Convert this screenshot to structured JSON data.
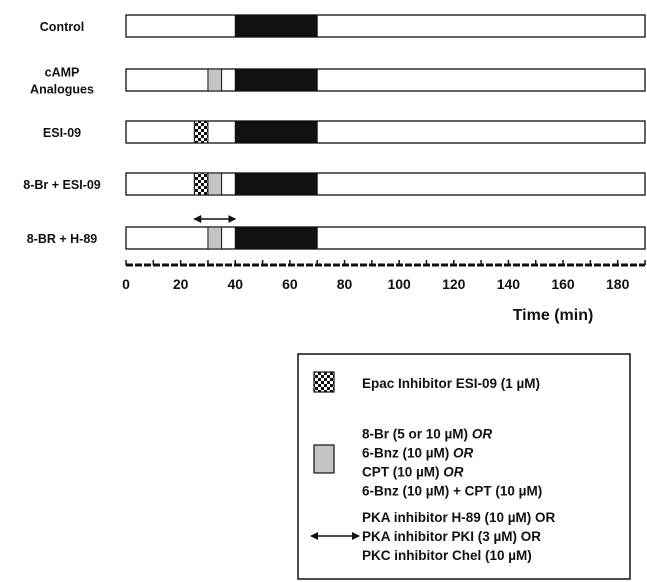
{
  "rows": [
    {
      "label_lines": [
        "Control"
      ],
      "segments": [
        {
          "kind": "dark",
          "start": 40,
          "end": 70
        }
      ]
    },
    {
      "label_lines": [
        "cAMP",
        "Analogues"
      ],
      "segments": [
        {
          "kind": "gray",
          "start": 30,
          "end": 35
        },
        {
          "kind": "dark",
          "start": 40,
          "end": 70
        }
      ]
    },
    {
      "label_lines": [
        "ESI-09"
      ],
      "segments": [
        {
          "kind": "checker",
          "start": 25,
          "end": 30
        },
        {
          "kind": "dark",
          "start": 40,
          "end": 70
        }
      ]
    },
    {
      "label_lines": [
        "8-Br + ESI-09"
      ],
      "segments": [
        {
          "kind": "checker",
          "start": 25,
          "end": 30
        },
        {
          "kind": "gray",
          "start": 30,
          "end": 35
        },
        {
          "kind": "dark",
          "start": 40,
          "end": 70
        }
      ]
    },
    {
      "label_lines": [
        "8-BR + H-89"
      ],
      "segments": [
        {
          "kind": "gray",
          "start": 30,
          "end": 35
        },
        {
          "kind": "dark",
          "start": 40,
          "end": 70
        }
      ],
      "arrow": {
        "start": 25,
        "end": 40
      }
    }
  ],
  "axis": {
    "min": 0,
    "max": 190,
    "ticks": [
      0,
      20,
      40,
      60,
      80,
      100,
      120,
      140,
      160,
      180
    ],
    "label": "Time (min)"
  },
  "legend": [
    {
      "kind": "checker",
      "lines": [
        [
          {
            "t": "Epac Inhibitor ESI-09 (1 µM)"
          }
        ]
      ]
    },
    {
      "kind": "gray",
      "lines": [
        [
          {
            "t": "8-Br (5 or 10 µM) "
          },
          {
            "t": "OR",
            "i": true
          }
        ],
        [
          {
            "t": "6-Bnz (10 µM) "
          },
          {
            "t": "OR",
            "i": true
          }
        ],
        [
          {
            "t": "CPT (10 µM) "
          },
          {
            "t": "OR",
            "i": true
          }
        ],
        [
          {
            "t": "6-Bnz (10 µM) + CPT (10 µM)"
          }
        ]
      ]
    },
    {
      "kind": "arrow",
      "lines": [
        [
          {
            "t": "PKA inhibitor H-89 (10 µM) OR"
          }
        ],
        [
          {
            "t": "PKA inhibitor PKI (3 µM) OR"
          }
        ],
        [
          {
            "t": "PKC inhibitor Chel (10 µM)"
          }
        ]
      ]
    }
  ],
  "colors": {
    "dark": "#111111",
    "gray": "#c4c4c4",
    "outline": "#111111"
  }
}
